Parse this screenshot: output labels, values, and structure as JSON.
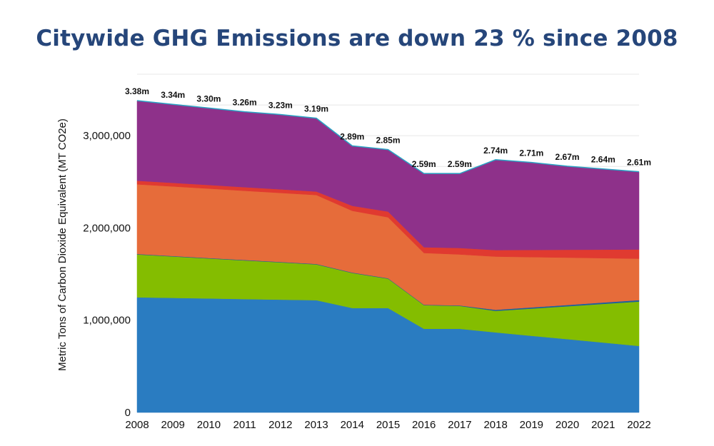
{
  "title": "Citywide GHG Emissions are down 23 % since 2008",
  "chart_data": {
    "type": "area",
    "stacked": true,
    "title": "Citywide GHG Emissions are down 23 % since 2008",
    "xlabel": "",
    "ylabel": "Metric Tons of Carbon Dioxide Equivalent (MT CO2e)",
    "ylim": [
      0,
      3666667
    ],
    "yticks": [
      0,
      1000000,
      2000000,
      3000000
    ],
    "ytick_labels": [
      "0",
      "1,000,000",
      "2,000,000",
      "3,000,000"
    ],
    "grid": true,
    "legend": "none",
    "categories": [
      "2008",
      "2009",
      "2010",
      "2011",
      "2012",
      "2013",
      "2014",
      "2015",
      "2016",
      "2017",
      "2018",
      "2019",
      "2020",
      "2021",
      "2022"
    ],
    "series": [
      {
        "color": "#2a7cc1",
        "values": [
          1248000,
          1242000,
          1236000,
          1229000,
          1223000,
          1217000,
          1132000,
          1132000,
          907000,
          907000,
          868000,
          831000,
          795000,
          758000,
          721000
        ]
      },
      {
        "color": "#84bd00",
        "values": [
          465000,
          449000,
          433000,
          419000,
          404000,
          388000,
          380000,
          318000,
          256000,
          248000,
          233000,
          295000,
          356000,
          419000,
          481000
        ]
      },
      {
        "color": "#1f5f9e",
        "values": [
          5000,
          5000,
          5000,
          5000,
          5000,
          5000,
          5000,
          5000,
          5000,
          5000,
          12000,
          13000,
          14000,
          15000,
          16000
        ]
      },
      {
        "color": "#e66c3a",
        "values": [
          755000,
          754000,
          753000,
          750000,
          748000,
          747000,
          669000,
          661000,
          561000,
          553000,
          577000,
          545000,
          514000,
          481000,
          449000
        ]
      },
      {
        "color": "#e03a30",
        "values": [
          39000,
          39000,
          39000,
          39000,
          39000,
          38000,
          54000,
          62000,
          62000,
          70000,
          70000,
          78000,
          85000,
          92000,
          100000
        ]
      },
      {
        "color": "#8e318a",
        "values": [
          868000,
          851000,
          834000,
          818000,
          811000,
          795000,
          650000,
          672000,
          799000,
          807000,
          980000,
          948000,
          906000,
          875000,
          843000
        ]
      }
    ],
    "totals_labels": [
      "3.38m",
      "3.34m",
      "3.30m",
      "3.26m",
      "3.23m",
      "3.19m",
      "2.89m",
      "2.85m",
      "2.59m",
      "2.59m",
      "2.74m",
      "2.71m",
      "2.67m",
      "2.64m",
      "2.61m"
    ],
    "top_line_color": "#2aa3c4"
  }
}
